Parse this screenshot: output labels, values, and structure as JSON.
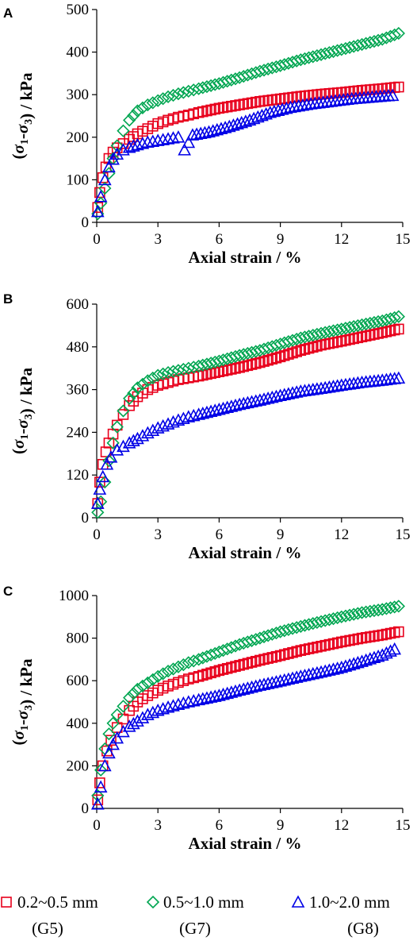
{
  "legend": [
    {
      "label": "0.2~0.5 mm",
      "group": "(G5)",
      "marker": "square",
      "color": "#e8001c"
    },
    {
      "label": "0.5~1.0 mm",
      "group": "(G7)",
      "marker": "diamond",
      "color": "#00a651"
    },
    {
      "label": "1.0~2.0 mm",
      "group": "(G8)",
      "marker": "triangle",
      "color": "#0000e6"
    }
  ],
  "chart_data": [
    {
      "panel": "A",
      "type": "scatter",
      "xlabel": "Axial strain / %",
      "ylabel": "(σ1-σ3) / kPa",
      "xlim": [
        0,
        15
      ],
      "ylim": [
        0,
        500
      ],
      "xticks": [
        0,
        3,
        6,
        9,
        12,
        15
      ],
      "yticks": [
        0,
        100,
        200,
        300,
        400,
        500
      ],
      "grid": false,
      "series": [
        {
          "name": "0.2~0.5 mm (G5)",
          "color": "#e8001c",
          "marker": "square",
          "x": [
            0.05,
            0.15,
            0.3,
            0.45,
            0.6,
            0.8,
            1.0,
            1.3,
            1.6,
            2.0,
            2.5,
            3.0,
            3.5,
            4.0,
            4.5,
            5.0,
            6.0,
            7.0,
            8.0,
            9.0,
            10.0,
            11.0,
            12.0,
            13.0,
            14.0,
            14.8
          ],
          "y": [
            35,
            70,
            105,
            130,
            150,
            165,
            175,
            185,
            195,
            208,
            220,
            232,
            240,
            247,
            252,
            258,
            268,
            276,
            284,
            290,
            296,
            301,
            305,
            310,
            314,
            318
          ]
        },
        {
          "name": "0.5~1.0 mm (G7)",
          "color": "#00a651",
          "marker": "diamond",
          "x": [
            0.05,
            0.2,
            0.4,
            0.6,
            0.8,
            1.0,
            1.3,
            1.6,
            2.0,
            2.5,
            3.0,
            3.5,
            4.0,
            4.5,
            5.0,
            6.0,
            7.0,
            8.0,
            9.0,
            10.0,
            11.0,
            12.0,
            13.0,
            14.0,
            14.8
          ],
          "y": [
            20,
            45,
            80,
            115,
            150,
            180,
            215,
            240,
            262,
            276,
            286,
            295,
            302,
            308,
            314,
            326,
            340,
            355,
            368,
            382,
            394,
            406,
            418,
            430,
            444
          ]
        },
        {
          "name": "1.0~2.0 mm (G8)",
          "color": "#0000e6",
          "marker": "triangle",
          "x": [
            0.05,
            0.2,
            0.4,
            0.6,
            0.8,
            1.0,
            1.3,
            1.6,
            2.0,
            2.5,
            3.0,
            3.5,
            4.0,
            4.3,
            4.7,
            5.5,
            6.5,
            7.5,
            8.5,
            9.5,
            10.5,
            11.5,
            12.5,
            13.5,
            14.5
          ],
          "y": [
            25,
            60,
            100,
            130,
            148,
            160,
            170,
            176,
            182,
            188,
            192,
            196,
            200,
            170,
            205,
            212,
            225,
            240,
            258,
            270,
            278,
            284,
            290,
            294,
            298
          ]
        }
      ]
    },
    {
      "panel": "B",
      "type": "scatter",
      "xlabel": "Axial strain / %",
      "ylabel": "(σ1-σ3) / kPa",
      "xlim": [
        0,
        15
      ],
      "ylim": [
        0,
        600
      ],
      "xticks": [
        0,
        3,
        6,
        9,
        12,
        15
      ],
      "yticks": [
        0,
        120,
        240,
        360,
        480,
        600
      ],
      "grid": false,
      "series": [
        {
          "name": "0.2~0.5 mm (G5)",
          "color": "#e8001c",
          "marker": "square",
          "x": [
            0.05,
            0.15,
            0.3,
            0.45,
            0.6,
            0.8,
            1.0,
            1.3,
            1.6,
            2.0,
            2.5,
            3.0,
            3.5,
            4.0,
            4.5,
            5.0,
            6.0,
            7.0,
            8.0,
            9.0,
            10.0,
            11.0,
            12.0,
            13.0,
            14.0,
            14.8
          ],
          "y": [
            40,
            100,
            150,
            185,
            210,
            235,
            260,
            290,
            315,
            340,
            360,
            372,
            380,
            388,
            393,
            398,
            410,
            422,
            436,
            452,
            470,
            485,
            496,
            508,
            520,
            530
          ]
        },
        {
          "name": "0.5~1.0 mm (G7)",
          "color": "#00a651",
          "marker": "diamond",
          "x": [
            0.05,
            0.2,
            0.4,
            0.6,
            0.8,
            1.0,
            1.3,
            1.6,
            2.0,
            2.5,
            3.0,
            3.5,
            4.0,
            4.5,
            5.0,
            6.0,
            7.0,
            8.0,
            9.0,
            10.0,
            11.0,
            12.0,
            13.0,
            14.0,
            14.8
          ],
          "y": [
            15,
            45,
            100,
            160,
            210,
            255,
            300,
            335,
            365,
            385,
            400,
            408,
            414,
            420,
            426,
            440,
            456,
            470,
            488,
            505,
            518,
            530,
            542,
            553,
            565
          ]
        },
        {
          "name": "1.0~2.0 mm (G8)",
          "color": "#0000e6",
          "marker": "triangle",
          "x": [
            0.05,
            0.15,
            0.3,
            0.5,
            0.7,
            1.0,
            1.3,
            1.6,
            2.0,
            2.5,
            3.0,
            3.5,
            4.0,
            4.5,
            5.0,
            6.0,
            7.0,
            8.0,
            9.0,
            10.0,
            11.0,
            12.0,
            13.0,
            14.0,
            14.8
          ],
          "y": [
            40,
            80,
            115,
            150,
            170,
            190,
            200,
            210,
            222,
            238,
            252,
            263,
            274,
            283,
            290,
            304,
            318,
            330,
            343,
            355,
            363,
            372,
            380,
            386,
            392
          ]
        }
      ]
    },
    {
      "panel": "C",
      "type": "scatter",
      "xlabel": "Axial strain / %",
      "ylabel": "(σ1-σ3) / kPa",
      "xlim": [
        0,
        15
      ],
      "ylim": [
        0,
        1000
      ],
      "xticks": [
        0,
        3,
        6,
        9,
        12,
        15
      ],
      "yticks": [
        0,
        200,
        400,
        600,
        800,
        1000
      ],
      "grid": false,
      "series": [
        {
          "name": "0.2~0.5 mm (G5)",
          "color": "#e8001c",
          "marker": "square",
          "x": [
            0.05,
            0.15,
            0.3,
            0.5,
            0.7,
            1.0,
            1.3,
            1.6,
            2.0,
            2.5,
            3.0,
            3.5,
            4.0,
            4.5,
            5.0,
            6.0,
            7.0,
            8.0,
            9.0,
            10.0,
            11.0,
            12.0,
            13.0,
            14.0,
            14.8
          ],
          "y": [
            40,
            120,
            200,
            270,
            320,
            380,
            420,
            460,
            500,
            530,
            555,
            575,
            592,
            608,
            620,
            648,
            672,
            696,
            718,
            742,
            762,
            782,
            800,
            815,
            830
          ]
        },
        {
          "name": "0.5~1.0 mm (G7)",
          "color": "#00a651",
          "marker": "diamond",
          "x": [
            0.05,
            0.2,
            0.4,
            0.6,
            0.8,
            1.0,
            1.3,
            1.6,
            2.0,
            2.5,
            3.0,
            3.5,
            4.0,
            4.5,
            5.0,
            6.0,
            7.0,
            8.0,
            9.0,
            10.0,
            11.0,
            12.0,
            13.0,
            14.0,
            14.8
          ],
          "y": [
            60,
            180,
            280,
            350,
            400,
            440,
            480,
            520,
            560,
            590,
            620,
            645,
            665,
            685,
            700,
            735,
            770,
            800,
            830,
            855,
            878,
            900,
            920,
            935,
            950
          ]
        },
        {
          "name": "1.0~2.0 mm (G8)",
          "color": "#0000e6",
          "marker": "triangle",
          "x": [
            0.05,
            0.2,
            0.4,
            0.6,
            0.8,
            1.0,
            1.3,
            1.6,
            2.0,
            2.5,
            3.0,
            3.5,
            4.0,
            4.5,
            5.0,
            6.0,
            7.0,
            8.0,
            9.0,
            10.0,
            11.0,
            12.0,
            13.0,
            14.0,
            14.6
          ],
          "y": [
            20,
            100,
            200,
            260,
            300,
            330,
            360,
            385,
            410,
            440,
            460,
            475,
            488,
            500,
            510,
            530,
            555,
            578,
            598,
            620,
            640,
            662,
            690,
            720,
            748
          ]
        }
      ]
    }
  ]
}
